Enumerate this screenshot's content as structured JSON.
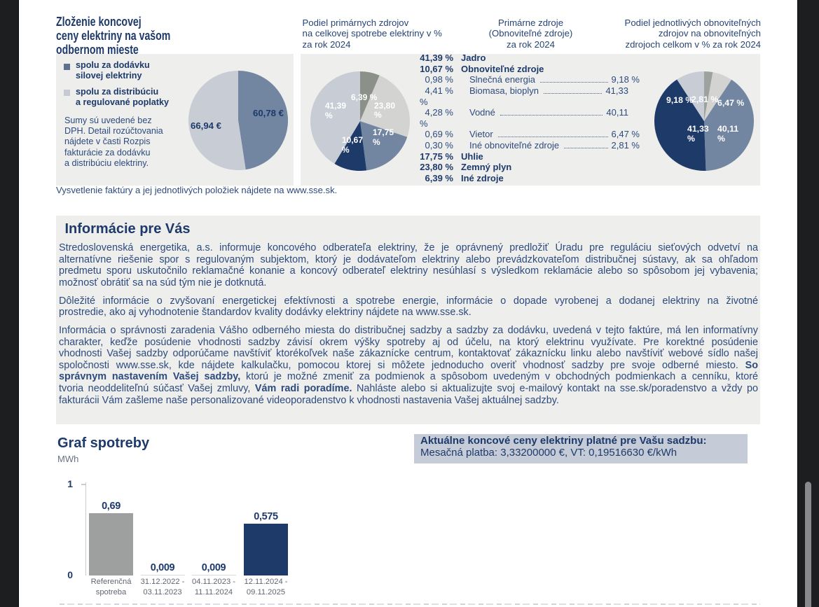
{
  "page": {
    "top_left": {
      "title": "Zloženie koncovej\nceny elektriny na vašom\nodbernom mieste",
      "legend": [
        {
          "label": "spolu za dodávku\nsilovej elektriny",
          "color": "#5f7190"
        },
        {
          "label": "spolu za distribúciu\na regulované poplatky",
          "color": "#c5cad4"
        }
      ],
      "note": "Sumy sú uvedené bez\nDPH. Detail rozúčtovania\nnájdete v časti Rozpis\nfakturácie za dodávku\na distribúciu elektriny."
    },
    "headings": {
      "primary_share": "Podiel primárnych zdrojov\nna celkovej spotrebe elektriny v %\nza rok 2024",
      "primary_sources": "Primárne zdroje\n(Obnoviteľné zdroje)\nza rok 2024",
      "renewables_share": "Podiel jednotlivých obnoviteľných\nzdrojov na obnoviteľných\nzdrojoch celkom v % za rok 2024"
    },
    "source_list": {
      "rows": [
        {
          "type": "main",
          "value": "41,39 %",
          "label": "Jadro"
        },
        {
          "type": "main",
          "value": "10,67 %",
          "label": "Obnoviteľné zdroje"
        },
        {
          "type": "sub",
          "value": "0,98 %",
          "label": "Slnečná energia",
          "right": "9,18 %",
          "wrapped": false
        },
        {
          "type": "sub",
          "value": "4,41 %",
          "label": "Biomasa, bioplyn",
          "right": "41,33",
          "wrapped": true
        },
        {
          "type": "wrap",
          "label": "%"
        },
        {
          "type": "sub",
          "value": "4,28 %",
          "label": "Vodné",
          "right": "40,11",
          "wrapped": true
        },
        {
          "type": "wrap",
          "label": "%"
        },
        {
          "type": "sub",
          "value": "0,69 %",
          "label": "Vietor",
          "right": "6,47 %",
          "wrapped": false
        },
        {
          "type": "sub",
          "value": "0,30 %",
          "label": "Iné obnoviteľné zdroje",
          "right": "2,81 %",
          "wrapped": false
        },
        {
          "type": "main",
          "value": "17,75 %",
          "label": "Uhlie"
        },
        {
          "type": "main",
          "value": "23,80 %",
          "label": "Zemný plyn"
        },
        {
          "type": "main",
          "value": "6,39 %",
          "label": "Iné zdroje"
        }
      ]
    },
    "explain_note": "Vysvetlenie faktúry a jej jednotlivých položiek nájdete na www.sse.sk.",
    "info_section": {
      "title": "Informácie pre Vás",
      "paragraphs": [
        {
          "lines": [
            [
              {
                "t": "Stredoslovenská energetika, a.s. informuje koncového odberateľa elektriny, že je oprávnený predložiť Úradu pre reguláciu sieťových odvetví na",
                "b": false
              }
            ],
            [
              {
                "t": "alternatívne riešenie spor s regulovaným subjektom, ktorý je dodávateľom elektriny alebo prevádzkovateľom distribučnej sústavy, ak sa ohľadom",
                "b": false
              }
            ],
            [
              {
                "t": "predmetu sporu uskutočnilo reklamačné konanie a koncový odberateľ elektriny nesúhlasí s výsledkom reklamácie alebo so spôsobom jej vybavenia;",
                "b": false
              }
            ],
            [
              {
                "t": "možnosť obrátiť sa na súd tým nie je dotknutá.",
                "b": false
              }
            ]
          ]
        },
        {
          "lines": [
            [
              {
                "t": "Dôležité informácie o zvyšovaní energetickej efektívnosti a spotrebe energie, informácie o dopade vyrobenej a dodanej elektriny na životné",
                "b": false
              }
            ],
            [
              {
                "t": "prostredie, ako aj vyhodnotenie štandardov kvality dodávky elektriny nájdete na www.sse.sk.",
                "b": false
              }
            ]
          ]
        },
        {
          "lines": [
            [
              {
                "t": "Informácia o správnosti zaradenia Vášho odberného miesta do distribučnej sadzby a sadzby za dodávku, uvedená v tejto faktúre, má len informatívny",
                "b": false
              }
            ],
            [
              {
                "t": "charakter, keďže posúdenie vhodnosti sadzby závisí okrem výšky spotreby aj od účelu, na ktorý elektrinu využívate. Pre korektné posúdenie",
                "b": false
              }
            ],
            [
              {
                "t": "vhodnosti Vašej sadzby odporúčame navštíviť ktorékoľvek naše zákaznícke centrum, kontaktovať zákaznícku linku alebo navštíviť webové sídlo našej",
                "b": false
              }
            ],
            [
              {
                "t": "spoločnosti www.sse.sk, kde nájdete kalkulačku, pomocou ktorej si môžete jednoducho overiť vhodnosť sadzby pre svoje odberné miesto. ",
                "b": false
              },
              {
                "t": "So",
                "b": true
              }
            ],
            [
              {
                "t": "správnym nastavením Vašej sadzby,",
                "b": true
              },
              {
                "t": " ktorú je možné zmeniť za podmienok a spôsobom uvedeným v obchodných podmienkach a cenníku, ktoré",
                "b": false
              }
            ],
            [
              {
                "t": "tvoria neoddeliteľnú súčasť Vašej zmluvy, ",
                "b": false
              },
              {
                "t": "Vám radi poradíme.",
                "b": true
              },
              {
                "t": " Nahláste alebo si aktualizujte svoj e-mailový kontakt na sse.sk/poradenstvo a vždy po",
                "b": false
              }
            ],
            [
              {
                "t": "fakturácii Vám zašleme naše personalizované videoporadenstvo k vhodnosti nastavenia Vašej aktuálnej sadzby.",
                "b": false
              }
            ]
          ]
        }
      ]
    },
    "consumption": {
      "title": "Graf spotreby",
      "unit": "MWh"
    },
    "price_box": {
      "line1": "Aktuálne koncové ceny elektriny platné pre Vašu sadzbu:",
      "line2": "Mesačná platba: 3,33200000 €, VT: 0,19516630 €/kWh"
    }
  },
  "palette": {
    "navy": "#1e3a69",
    "slate": "#7285a1",
    "periwinkle": "#c7ccd5",
    "lightgray": "#d3d4d1",
    "olive": "#8b9089",
    "olive2": "#9da2a0",
    "bar_gray": "#9da09f",
    "bar_tiny": "#d9dad8"
  },
  "chart_data": [
    {
      "type": "pie",
      "id": "price_pie",
      "title": "Zloženie koncovej ceny elektriny na vašom odbernom mieste",
      "unit": "EUR",
      "slices": [
        {
          "label": "spolu za dodávku silovej elektriny",
          "value": 60.78,
          "display": "60,78 €",
          "color": "slate"
        },
        {
          "label": "spolu za distribúciu a regulované poplatky",
          "value": 66.94,
          "display": "66,94 €",
          "color": "periwinkle"
        }
      ]
    },
    {
      "type": "pie",
      "id": "primary_pie",
      "title": "Podiel primárnych zdrojov na celkovej spotrebe elektriny v % za rok 2024",
      "unit": "%",
      "slices": [
        {
          "label": "Iné zdroje",
          "value": 6.39,
          "display": "6,39 %",
          "color": "olive"
        },
        {
          "label": "Zemný plyn",
          "value": 23.8,
          "display": "23,80\n%",
          "color": "lightgray"
        },
        {
          "label": "Uhlie",
          "value": 17.75,
          "display": "17,75\n%",
          "color": "slate"
        },
        {
          "label": "Obnoviteľné zdroje",
          "value": 10.67,
          "display": "10,67\n%",
          "color": "navy"
        },
        {
          "label": "Jadro",
          "value": 41.39,
          "display": "41,39\n%",
          "color": "periwinkle"
        }
      ]
    },
    {
      "type": "pie",
      "id": "renewables_pie",
      "title": "Podiel jednotlivých obnoviteľných zdrojov na obnoviteľných zdrojoch celkom v % za rok 2024",
      "unit": "%",
      "slices": [
        {
          "label": "Iné obnoviteľné zdroje",
          "value": 2.81,
          "display": "2,81 %",
          "color": "olive2"
        },
        {
          "label": "Vietor",
          "value": 6.47,
          "display": "6,47 %",
          "color": "lightgray"
        },
        {
          "label": "Vodné",
          "value": 40.11,
          "display": "40,11\n%",
          "color": "slate"
        },
        {
          "label": "Biomasa, bioplyn",
          "value": 41.33,
          "display": "41,33\n%",
          "color": "navy"
        },
        {
          "label": "Slnečná energia",
          "value": 9.18,
          "display": "9,18 %",
          "color": "periwinkle"
        }
      ]
    },
    {
      "type": "bar",
      "id": "consumption_chart",
      "title": "Graf spotreby",
      "ylabel": "MWh",
      "ylim": [
        0,
        1
      ],
      "yticks": [
        "0",
        "1"
      ],
      "categories": [
        "Referenčná\nspotreba",
        "31.12.2022 -\n03.11.2023",
        "04.11.2023 -\n11.11.2024",
        "12.11.2024 -\n09.11.2025"
      ],
      "values": [
        0.69,
        0.009,
        0.009,
        0.575
      ],
      "value_labels": [
        "0,69",
        "0,009",
        "0,009",
        "0,575"
      ],
      "bar_colors": [
        "bar_gray",
        "bar_tiny",
        "bar_tiny",
        "navy"
      ]
    }
  ]
}
